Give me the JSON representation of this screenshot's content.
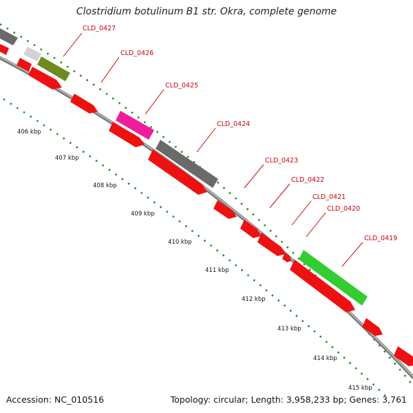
{
  "title": "Clostridium botulinum B1 str. Okra, complete genome",
  "footer": {
    "accession": "Accession: NC_010516",
    "summary": "Topology: circular; Length: 3,958,233 bp; Genes: 3,761"
  },
  "kbp_labels": [
    "406 kbp",
    "407 kbp",
    "408 kbp",
    "409 kbp",
    "410 kbp",
    "411 kbp",
    "412 kbp",
    "413 kbp",
    "414 kbp",
    "415 kbp"
  ],
  "gene_labels": [
    "CLD_0427",
    "CLD_0426",
    "CLD_0425",
    "CLD_0424",
    "CLD_0423",
    "CLD_0422",
    "CLD_0421",
    "CLD_0420",
    "CLD_0419"
  ],
  "colors": {
    "backbone": "#8a8a8a",
    "cds": "#ee1111",
    "label_line": "#cc0000",
    "tick_dots": "#1f8f1f",
    "cog_gray": "#6a6a6a",
    "cog_light": "#d2d2d2",
    "cog_olive": "#6f8a1e",
    "cog_pink": "#ee1e9a",
    "cog_green": "#33cc33"
  }
}
